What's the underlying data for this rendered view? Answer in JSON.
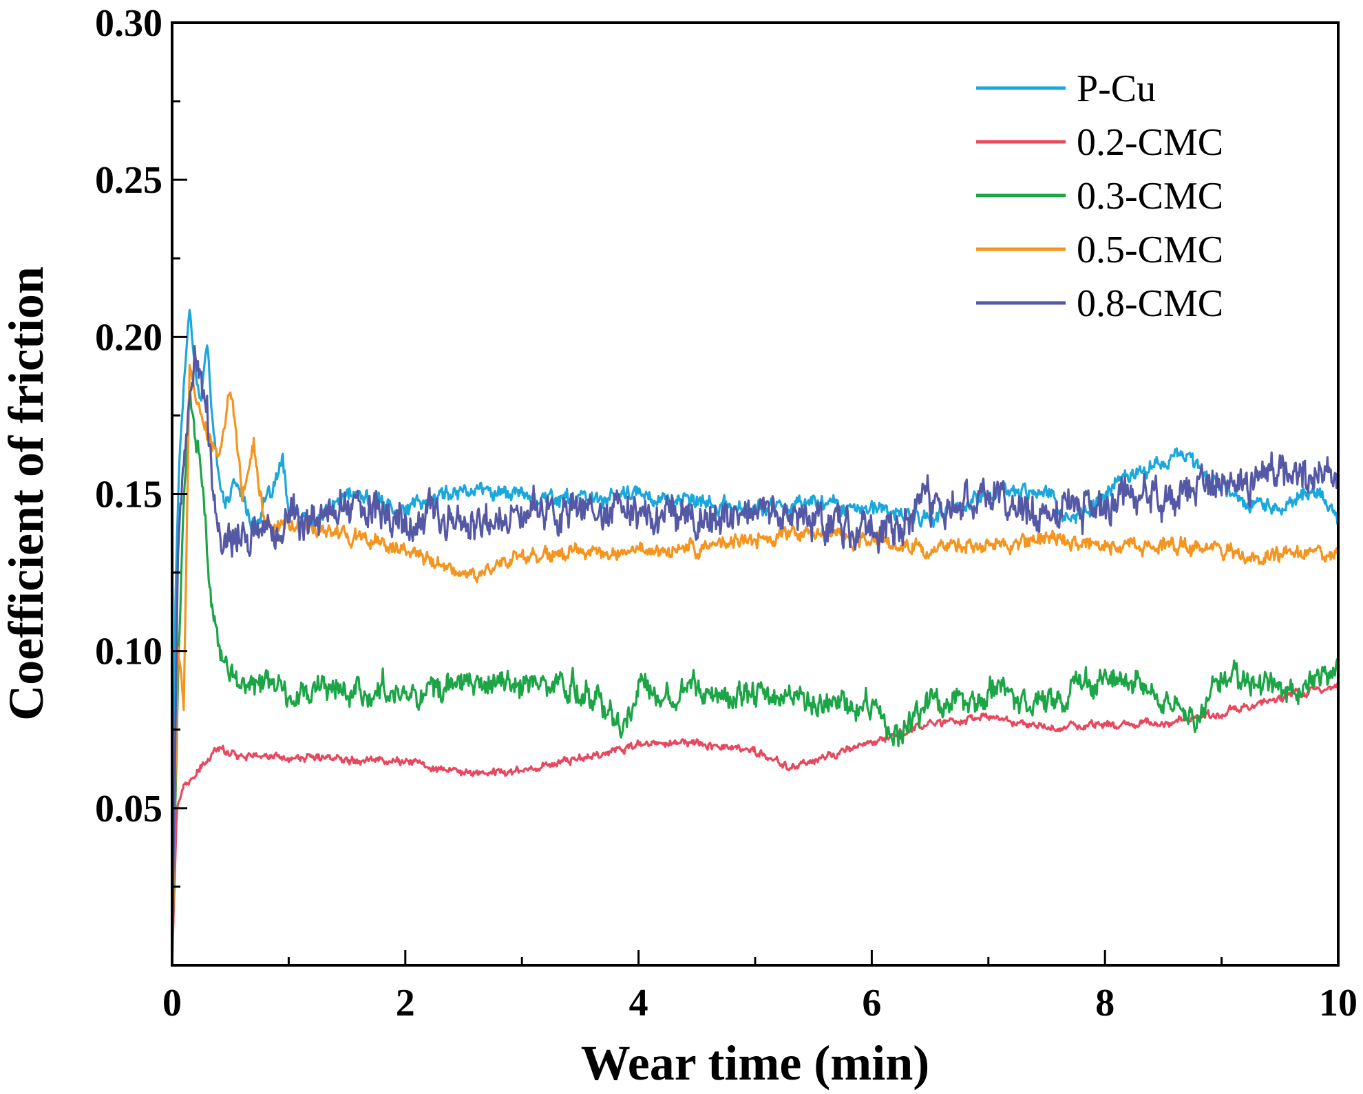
{
  "chart_data": {
    "type": "line",
    "title": "",
    "xlabel": "Wear time (min)",
    "ylabel": "Coefficient of friction",
    "xlim": [
      0,
      10
    ],
    "ylim": [
      0,
      0.3
    ],
    "xticks": [
      "0",
      "2",
      "4",
      "6",
      "8",
      "10"
    ],
    "yticks": [
      "0.05",
      "0.10",
      "0.15",
      "0.20",
      "0.25",
      "0.30"
    ],
    "legend_position": "top-right",
    "grid": false,
    "series": [
      {
        "name": "P-Cu",
        "color": "#1aa7dc",
        "noise": 0.003,
        "x": [
          0,
          0.03,
          0.06,
          0.1,
          0.15,
          0.2,
          0.25,
          0.3,
          0.35,
          0.45,
          0.55,
          0.7,
          0.85,
          0.95,
          1.0,
          1.2,
          1.5,
          2.0,
          2.5,
          3.0,
          3.5,
          4.0,
          4.5,
          5.0,
          5.5,
          6.0,
          6.5,
          7.0,
          7.5,
          7.7,
          8.0,
          8.2,
          8.5,
          8.7,
          8.9,
          9.2,
          9.5,
          9.8,
          10.0
        ],
        "y": [
          0.0,
          0.12,
          0.16,
          0.185,
          0.21,
          0.19,
          0.18,
          0.2,
          0.17,
          0.145,
          0.155,
          0.14,
          0.15,
          0.16,
          0.145,
          0.14,
          0.15,
          0.145,
          0.152,
          0.15,
          0.148,
          0.15,
          0.147,
          0.145,
          0.148,
          0.145,
          0.142,
          0.15,
          0.152,
          0.14,
          0.15,
          0.157,
          0.16,
          0.163,
          0.155,
          0.148,
          0.145,
          0.152,
          0.142
        ]
      },
      {
        "name": "0.2-CMC",
        "color": "#e8485e",
        "noise": 0.0015,
        "x": [
          0,
          0.04,
          0.1,
          0.2,
          0.3,
          0.4,
          0.6,
          1.0,
          1.5,
          2.0,
          2.5,
          3.0,
          3.5,
          4.0,
          4.5,
          5.0,
          5.3,
          5.6,
          6.0,
          6.5,
          7.0,
          7.5,
          8.0,
          8.5,
          9.0,
          9.5,
          10.0
        ],
        "y": [
          0.0,
          0.05,
          0.057,
          0.06,
          0.065,
          0.069,
          0.067,
          0.066,
          0.066,
          0.065,
          0.061,
          0.062,
          0.066,
          0.07,
          0.071,
          0.068,
          0.063,
          0.066,
          0.071,
          0.077,
          0.079,
          0.075,
          0.077,
          0.077,
          0.08,
          0.085,
          0.089
        ]
      },
      {
        "name": "0.3-CMC",
        "color": "#1ca546",
        "noise": 0.005,
        "x": [
          0,
          0.05,
          0.1,
          0.15,
          0.2,
          0.25,
          0.3,
          0.35,
          0.4,
          0.5,
          0.7,
          1.0,
          1.5,
          2.0,
          2.5,
          3.0,
          3.5,
          3.7,
          3.85,
          4.0,
          4.5,
          5.0,
          5.5,
          6.0,
          6.2,
          6.5,
          7.0,
          7.5,
          8.0,
          8.3,
          8.6,
          8.8,
          9.0,
          9.5,
          10.0
        ],
        "y": [
          0.0,
          0.09,
          0.15,
          0.18,
          0.17,
          0.16,
          0.13,
          0.11,
          0.1,
          0.092,
          0.089,
          0.087,
          0.088,
          0.087,
          0.089,
          0.09,
          0.088,
          0.082,
          0.077,
          0.088,
          0.088,
          0.086,
          0.084,
          0.082,
          0.073,
          0.083,
          0.087,
          0.084,
          0.092,
          0.09,
          0.081,
          0.078,
          0.092,
          0.088,
          0.092
        ]
      },
      {
        "name": "0.5-CMC",
        "color": "#f5941e",
        "noise": 0.003,
        "x": [
          0,
          0.05,
          0.1,
          0.15,
          0.2,
          0.3,
          0.4,
          0.5,
          0.6,
          0.7,
          0.8,
          1.0,
          1.5,
          2.0,
          2.5,
          3.0,
          3.5,
          4.0,
          4.5,
          5.0,
          5.5,
          6.0,
          6.5,
          7.0,
          7.5,
          8.0,
          8.5,
          9.0,
          9.5,
          10.0
        ],
        "y": [
          0.0,
          0.1,
          0.082,
          0.19,
          0.18,
          0.17,
          0.16,
          0.185,
          0.15,
          0.165,
          0.14,
          0.14,
          0.137,
          0.132,
          0.124,
          0.13,
          0.131,
          0.131,
          0.133,
          0.136,
          0.138,
          0.135,
          0.132,
          0.134,
          0.136,
          0.133,
          0.134,
          0.132,
          0.131,
          0.132
        ]
      },
      {
        "name": "0.8-CMC",
        "color": "#5558a4",
        "noise": 0.007,
        "x": [
          0,
          0.05,
          0.1,
          0.15,
          0.2,
          0.25,
          0.3,
          0.35,
          0.4,
          0.5,
          0.6,
          0.8,
          1.0,
          1.5,
          2.0,
          2.5,
          3.0,
          3.5,
          4.0,
          4.5,
          5.0,
          5.5,
          6.0,
          6.5,
          7.0,
          7.5,
          8.0,
          8.5,
          9.0,
          9.5,
          10.0
        ],
        "y": [
          0.0,
          0.13,
          0.16,
          0.18,
          0.195,
          0.19,
          0.175,
          0.15,
          0.14,
          0.137,
          0.138,
          0.138,
          0.142,
          0.146,
          0.142,
          0.14,
          0.144,
          0.145,
          0.145,
          0.142,
          0.144,
          0.142,
          0.14,
          0.146,
          0.147,
          0.145,
          0.148,
          0.15,
          0.152,
          0.155,
          0.155
        ]
      }
    ]
  }
}
